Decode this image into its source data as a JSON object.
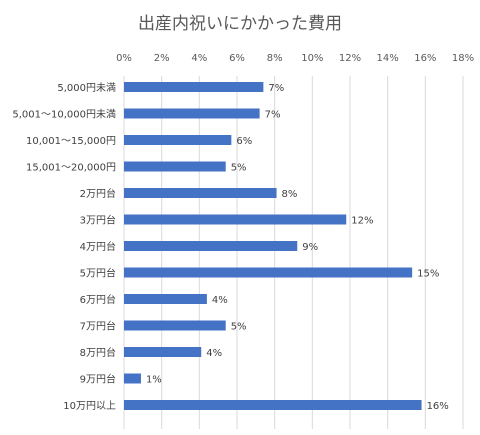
{
  "chart_data": {
    "type": "bar",
    "orientation": "horizontal",
    "title": "出産内祝いにかかった費用",
    "categories": [
      "5,000円未満",
      "5,001～10,000円未満",
      "10,001～15,000円",
      "15,001～20,000円",
      "2万円台",
      "3万円台",
      "4万円台",
      "5万円台",
      "6万円台",
      "7万円台",
      "8万円台",
      "9万円台",
      "10万円以上"
    ],
    "values": [
      7.4,
      7.2,
      5.7,
      5.4,
      8.1,
      11.8,
      9.2,
      15.3,
      4.4,
      5.4,
      4.1,
      0.9,
      15.8
    ],
    "data_labels": [
      "7%",
      "7%",
      "6%",
      "5%",
      "8%",
      "12%",
      "9%",
      "15%",
      "4%",
      "5%",
      "4%",
      "1%",
      "16%"
    ],
    "xlim": [
      0,
      18
    ],
    "x_ticks": [
      "0%",
      "2%",
      "4%",
      "6%",
      "8%",
      "10%",
      "12%",
      "14%",
      "16%",
      "18%"
    ],
    "x_axis_position": "top",
    "grid": true,
    "bar_color": "#4472C4",
    "grid_color": "#D9D9D9",
    "text_color": "#595959",
    "label_color": "#404040"
  }
}
